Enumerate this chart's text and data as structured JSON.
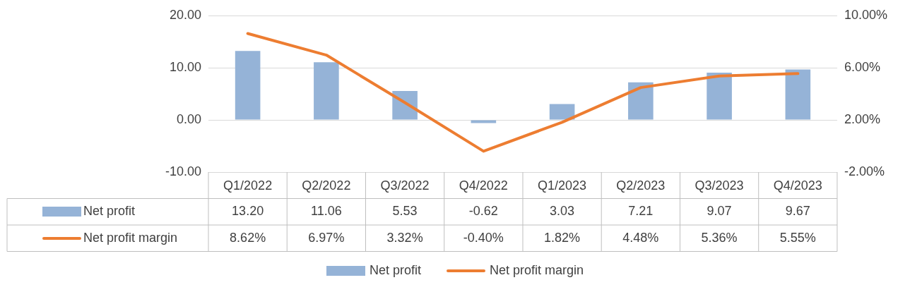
{
  "chart_data": {
    "type": "bar",
    "categories": [
      "Q1/2022",
      "Q2/2022",
      "Q3/2022",
      "Q4/2022",
      "Q1/2023",
      "Q2/2023",
      "Q3/2023",
      "Q4/2023"
    ],
    "series": [
      {
        "name": "Net profit",
        "color": "#95b3d7",
        "values": [
          13.2,
          11.06,
          5.53,
          -0.62,
          3.03,
          7.21,
          9.07,
          9.67
        ],
        "value_labels": [
          "13.20",
          "11.06",
          "5.53",
          "-0.62",
          "3.03",
          "7.21",
          "9.07",
          "9.67"
        ]
      },
      {
        "name": "Net profit margin",
        "type": "line",
        "axis": "y2",
        "color": "#ed7d31",
        "values": [
          8.62,
          6.97,
          3.32,
          -0.4,
          1.82,
          4.48,
          5.36,
          5.55
        ],
        "value_labels": [
          "8.62%",
          "6.97%",
          "3.32%",
          "-0.40%",
          "1.82%",
          "4.48%",
          "5.36%",
          "5.55%"
        ]
      }
    ],
    "ylim": [
      -10,
      20
    ],
    "yticks": [
      {
        "value": -10,
        "label": "-10.00"
      },
      {
        "value": 0,
        "label": "0.00"
      },
      {
        "value": 10,
        "label": "10.00"
      },
      {
        "value": 20,
        "label": "20.00"
      }
    ],
    "y2lim": [
      -2,
      10
    ],
    "y2ticks": [
      {
        "value": -2,
        "label": "-2.00%"
      },
      {
        "value": 2,
        "label": "2.00%"
      },
      {
        "value": 6,
        "label": "6.00%"
      },
      {
        "value": 10,
        "label": "10.00%"
      }
    ],
    "grid": "y",
    "legend": "bottom",
    "marker": "none"
  }
}
